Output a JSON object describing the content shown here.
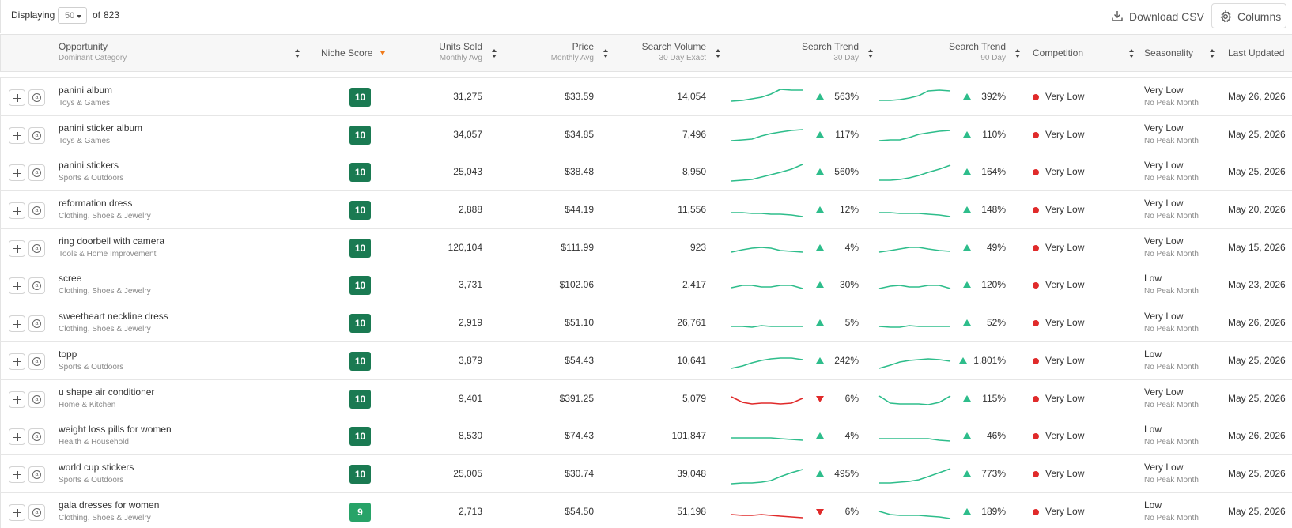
{
  "toolbar": {
    "displaying_label": "Displaying",
    "per_page_value": "50",
    "of_label": "of",
    "total": "823",
    "download_label": "Download CSV",
    "columns_label": "Columns"
  },
  "columns": {
    "opportunity": {
      "title": "Opportunity",
      "subtitle": "Dominant Category"
    },
    "niche_score": {
      "title": "Niche Score"
    },
    "units_sold": {
      "title": "Units Sold",
      "subtitle": "Monthly Avg"
    },
    "price": {
      "title": "Price",
      "subtitle": "Monthly Avg"
    },
    "search_volume": {
      "title": "Search Volume",
      "subtitle": "30 Day Exact"
    },
    "trend30": {
      "title": "Search Trend",
      "subtitle": "30 Day"
    },
    "trend90": {
      "title": "Search Trend",
      "subtitle": "90 Day"
    },
    "competition": {
      "title": "Competition"
    },
    "seasonality": {
      "title": "Seasonality"
    },
    "last_updated": {
      "title": "Last Updated"
    }
  },
  "colors": {
    "score_dark": "#1a7a52",
    "score_light": "#27a368",
    "trend_up": "#2ebd8b",
    "trend_down": "#e02a2a",
    "sort_active": "#f07a1a"
  },
  "rows": [
    {
      "name": "panini album",
      "category": "Toys & Games",
      "score": "10",
      "units": "31,275",
      "price": "$33.59",
      "volume": "14,054",
      "t30_dir": "up",
      "t30": "563%",
      "t90_dir": "up",
      "t90": "392%",
      "competition": "Very Low",
      "seasonality": "Very Low",
      "peak": "No Peak Month",
      "updated": "May 26, 2026"
    },
    {
      "name": "panini sticker album",
      "category": "Toys & Games",
      "score": "10",
      "units": "34,057",
      "price": "$34.85",
      "volume": "7,496",
      "t30_dir": "up",
      "t30": "117%",
      "t90_dir": "up",
      "t90": "110%",
      "competition": "Very Low",
      "seasonality": "Very Low",
      "peak": "No Peak Month",
      "updated": "May 25, 2026"
    },
    {
      "name": "panini stickers",
      "category": "Sports & Outdoors",
      "score": "10",
      "units": "25,043",
      "price": "$38.48",
      "volume": "8,950",
      "t30_dir": "up",
      "t30": "560%",
      "t90_dir": "up",
      "t90": "164%",
      "competition": "Very Low",
      "seasonality": "Very Low",
      "peak": "No Peak Month",
      "updated": "May 25, 2026"
    },
    {
      "name": "reformation dress",
      "category": "Clothing, Shoes & Jewelry",
      "score": "10",
      "units": "2,888",
      "price": "$44.19",
      "volume": "11,556",
      "t30_dir": "up",
      "t30": "12%",
      "t90_dir": "up",
      "t90": "148%",
      "competition": "Very Low",
      "seasonality": "Very Low",
      "peak": "No Peak Month",
      "updated": "May 20, 2026"
    },
    {
      "name": "ring doorbell with camera",
      "category": "Tools & Home Improvement",
      "score": "10",
      "units": "120,104",
      "price": "$111.99",
      "volume": "923",
      "t30_dir": "up",
      "t30": "4%",
      "t90_dir": "up",
      "t90": "49%",
      "competition": "Very Low",
      "seasonality": "Very Low",
      "peak": "No Peak Month",
      "updated": "May 15, 2026"
    },
    {
      "name": "scree",
      "category": "Clothing, Shoes & Jewelry",
      "score": "10",
      "units": "3,731",
      "price": "$102.06",
      "volume": "2,417",
      "t30_dir": "up",
      "t30": "30%",
      "t90_dir": "up",
      "t90": "120%",
      "competition": "Very Low",
      "seasonality": "Low",
      "peak": "No Peak Month",
      "updated": "May 23, 2026"
    },
    {
      "name": "sweetheart neckline dress",
      "category": "Clothing, Shoes & Jewelry",
      "score": "10",
      "units": "2,919",
      "price": "$51.10",
      "volume": "26,761",
      "t30_dir": "up",
      "t30": "5%",
      "t90_dir": "up",
      "t90": "52%",
      "competition": "Very Low",
      "seasonality": "Very Low",
      "peak": "No Peak Month",
      "updated": "May 26, 2026"
    },
    {
      "name": "topp",
      "category": "Sports & Outdoors",
      "score": "10",
      "units": "3,879",
      "price": "$54.43",
      "volume": "10,641",
      "t30_dir": "up",
      "t30": "242%",
      "t90_dir": "up",
      "t90": "1,801%",
      "competition": "Very Low",
      "seasonality": "Low",
      "peak": "No Peak Month",
      "updated": "May 25, 2026"
    },
    {
      "name": "u shape air conditioner",
      "category": "Home & Kitchen",
      "score": "10",
      "units": "9,401",
      "price": "$391.25",
      "volume": "5,079",
      "t30_dir": "down",
      "t30": "6%",
      "t90_dir": "up",
      "t90": "115%",
      "competition": "Very Low",
      "seasonality": "Very Low",
      "peak": "No Peak Month",
      "updated": "May 25, 2026"
    },
    {
      "name": "weight loss pills for women",
      "category": "Health & Household",
      "score": "10",
      "units": "8,530",
      "price": "$74.43",
      "volume": "101,847",
      "t30_dir": "up",
      "t30": "4%",
      "t90_dir": "up",
      "t90": "46%",
      "competition": "Very Low",
      "seasonality": "Low",
      "peak": "No Peak Month",
      "updated": "May 26, 2026"
    },
    {
      "name": "world cup stickers",
      "category": "Sports & Outdoors",
      "score": "10",
      "units": "25,005",
      "price": "$30.74",
      "volume": "39,048",
      "t30_dir": "up",
      "t30": "495%",
      "t90_dir": "up",
      "t90": "773%",
      "competition": "Very Low",
      "seasonality": "Very Low",
      "peak": "No Peak Month",
      "updated": "May 25, 2026"
    },
    {
      "name": "gala dresses for women",
      "category": "Clothing, Shoes & Jewelry",
      "score": "9",
      "units": "2,713",
      "price": "$54.50",
      "volume": "51,198",
      "t30_dir": "down",
      "t30": "6%",
      "t90_dir": "up",
      "t90": "189%",
      "competition": "Very Low",
      "seasonality": "Low",
      "peak": "No Peak Month",
      "updated": "May 25, 2026"
    }
  ]
}
